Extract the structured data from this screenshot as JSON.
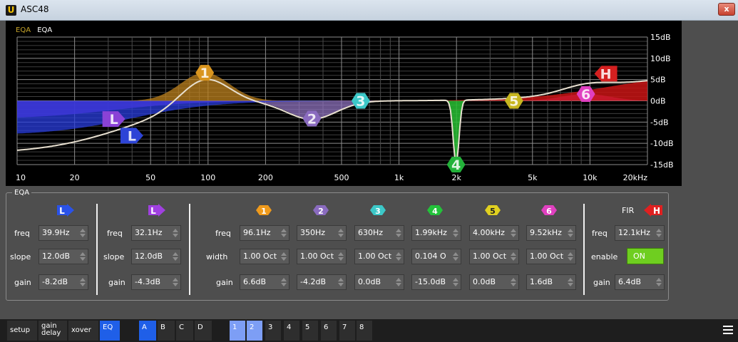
{
  "window": {
    "title": "ASC48",
    "close_label": "x"
  },
  "graph": {
    "tabs": [
      "EQA",
      "EQA"
    ],
    "db_labels": [
      "15dB",
      "10dB",
      "5dB",
      "0dB",
      "-5dB",
      "-10dB",
      "-15dB"
    ],
    "freq_labels": [
      "10",
      "20",
      "50",
      "100",
      "200",
      "500",
      "1k",
      "2k",
      "5k",
      "10k",
      "20kHz"
    ],
    "markers": [
      {
        "label": "1",
        "freq": 96.1,
        "gain": 6.6,
        "color": "#d9951f"
      },
      {
        "label": "2",
        "freq": 350,
        "gain": -4.2,
        "color": "#8a6bbf"
      },
      {
        "label": "3",
        "freq": 630,
        "gain": 0.0,
        "color": "#3cc8c8"
      },
      {
        "label": "4",
        "freq": 1990,
        "gain": -15.0,
        "color": "#23b23a"
      },
      {
        "label": "5",
        "freq": 4000,
        "gain": 0.0,
        "color": "#c7b620"
      },
      {
        "label": "6",
        "freq": 9520,
        "gain": 1.6,
        "color": "#e040c0"
      },
      {
        "label": "L",
        "freq": 32.1,
        "gain": -4.3,
        "color": "#8a42d6"
      },
      {
        "label": "L",
        "freq": 39.9,
        "gain": -8.2,
        "color": "#2d44d6"
      },
      {
        "label": "H",
        "freq": 12100,
        "gain": 6.4,
        "color": "#d42020"
      }
    ]
  },
  "eq": {
    "group_label": "EQA",
    "field_labels": {
      "freq": "freq",
      "slope": "slope",
      "gain": "gain",
      "width": "width",
      "enable": "enable",
      "fir": "FIR"
    },
    "lowshelf1": {
      "icon": "L",
      "color": "#2a52e8",
      "freq": "39.9Hz",
      "slope": "12.0dB",
      "gain": "-8.2dB"
    },
    "lowshelf2": {
      "icon": "L",
      "color": "#a040e0",
      "freq": "32.1Hz",
      "slope": "12.0dB",
      "gain": "-4.3dB"
    },
    "bands": [
      {
        "icon": "1",
        "color": "#ef9a1c",
        "freq": "96.1Hz",
        "width": "1.00 Oct",
        "gain": "6.6dB"
      },
      {
        "icon": "2",
        "color": "#8a6bbf",
        "freq": "350Hz",
        "width": "1.00 Oct",
        "gain": "-4.2dB"
      },
      {
        "icon": "3",
        "color": "#3cc8c8",
        "freq": "630Hz",
        "width": "1.00 Oct",
        "gain": "0.0dB"
      },
      {
        "icon": "4",
        "color": "#23c23a",
        "freq": "1.99kHz",
        "width": "0.104 O",
        "gain": "-15.0dB"
      },
      {
        "icon": "5",
        "color": "#e0d020",
        "freq": "4.00kHz",
        "width": "1.00 Oct",
        "gain": "0.0dB"
      },
      {
        "icon": "6",
        "color": "#e040c0",
        "freq": "9.52kHz",
        "width": "1.00 Oct",
        "gain": "1.6dB"
      }
    ],
    "highshelf": {
      "icon": "H",
      "color": "#e02020",
      "freq": "12.1kHz",
      "enable": "ON",
      "gain": "6.4dB"
    }
  },
  "nav": {
    "pages": [
      "setup",
      "gain delay",
      "xover",
      "EQ"
    ],
    "selected_page": "EQ",
    "presets": [
      "A",
      "B",
      "C",
      "D"
    ],
    "selected_preset": "A",
    "channels": [
      "1",
      "2",
      "3",
      "4",
      "5",
      "6",
      "7",
      "8"
    ],
    "selected_channels": [
      "1",
      "2"
    ]
  }
}
